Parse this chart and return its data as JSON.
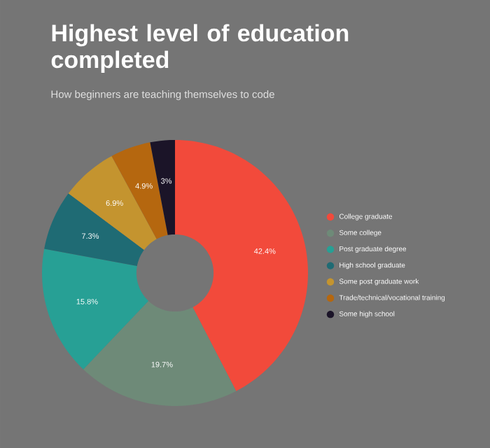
{
  "chart_data": {
    "type": "donut",
    "title": "Highest level of education completed",
    "subtitle": "How beginners are teaching themselves to code",
    "categories": [
      "College graduate",
      "Some college",
      "Post graduate degree",
      "High school graduate",
      "Some post graduate work",
      "Trade/technical/vocational training",
      "Some high school"
    ],
    "values": [
      42.4,
      19.7,
      15.8,
      7.3,
      6.9,
      4.9,
      3
    ],
    "value_labels": [
      "42.4%",
      "19.7%",
      "15.8%",
      "7.3%",
      "6.9%",
      "4.9%",
      "3%"
    ],
    "colors": [
      "#f24a3b",
      "#6e8a78",
      "#27a095",
      "#1f6b74",
      "#c4942f",
      "#b5670f",
      "#1b1428"
    ],
    "legend": "right"
  }
}
